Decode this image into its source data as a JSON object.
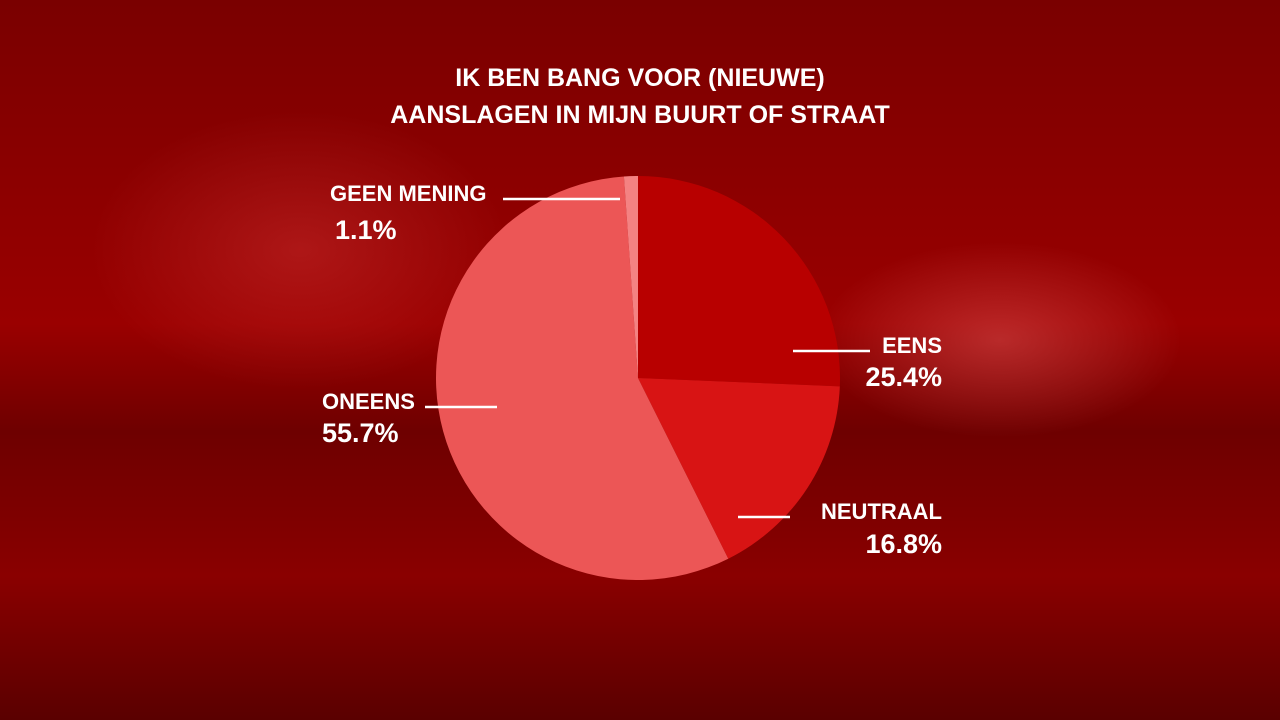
{
  "chart_data": {
    "type": "pie",
    "title": [
      "IK BEN BANG VOOR (NIEUWE)",
      "AANSLAGEN IN MIJN BUURT OF STRAAT"
    ],
    "categories": [
      "EENS",
      "NEUTRAAL",
      "ONEENS",
      "GEEN MENING"
    ],
    "values": [
      25.4,
      16.8,
      55.7,
      1.1
    ],
    "value_labels": [
      "25.4%",
      "16.8%",
      "55.7%",
      "1.1%"
    ],
    "colors": [
      "#b80000",
      "#d81414",
      "#ec5656",
      "#f48282"
    ]
  }
}
